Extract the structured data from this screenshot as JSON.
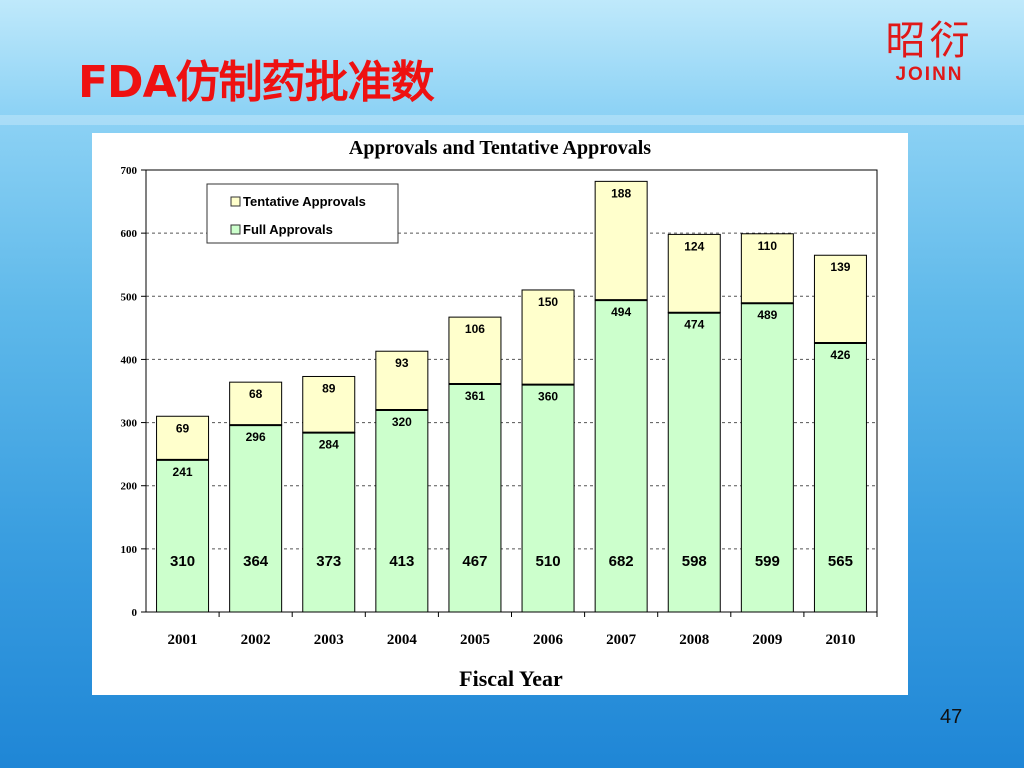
{
  "slide": {
    "title": "FDA仿制药批准数",
    "page_number": "47"
  },
  "logo": {
    "chinese": "昭衍",
    "english": "JOINN"
  },
  "colors": {
    "title": "#ee1111",
    "full": "#ccffcc",
    "tentative": "#ffffcc"
  },
  "chart_data": {
    "type": "bar",
    "stacked": true,
    "title": "Approvals and Tentative Approvals",
    "xlabel": "Fiscal Year",
    "ylabel": "",
    "ylim": [
      0,
      700
    ],
    "yticks": [
      0,
      100,
      200,
      300,
      400,
      500,
      600,
      700
    ],
    "grid": "horizontal dashed",
    "legend_position": "top-left",
    "categories": [
      "2001",
      "2002",
      "2003",
      "2004",
      "2005",
      "2006",
      "2007",
      "2008",
      "2009",
      "2010"
    ],
    "series": [
      {
        "name": "Full Approvals",
        "color": "#ccffcc",
        "values": [
          241,
          296,
          284,
          320,
          361,
          360,
          494,
          474,
          489,
          426
        ]
      },
      {
        "name": "Tentative Approvals",
        "color": "#ffffcc",
        "values": [
          69,
          68,
          89,
          93,
          106,
          150,
          188,
          124,
          110,
          139
        ]
      }
    ],
    "totals": [
      310,
      364,
      373,
      413,
      467,
      510,
      682,
      598,
      599,
      565
    ],
    "legend": [
      "Tentative Approvals",
      "Full Approvals"
    ]
  }
}
